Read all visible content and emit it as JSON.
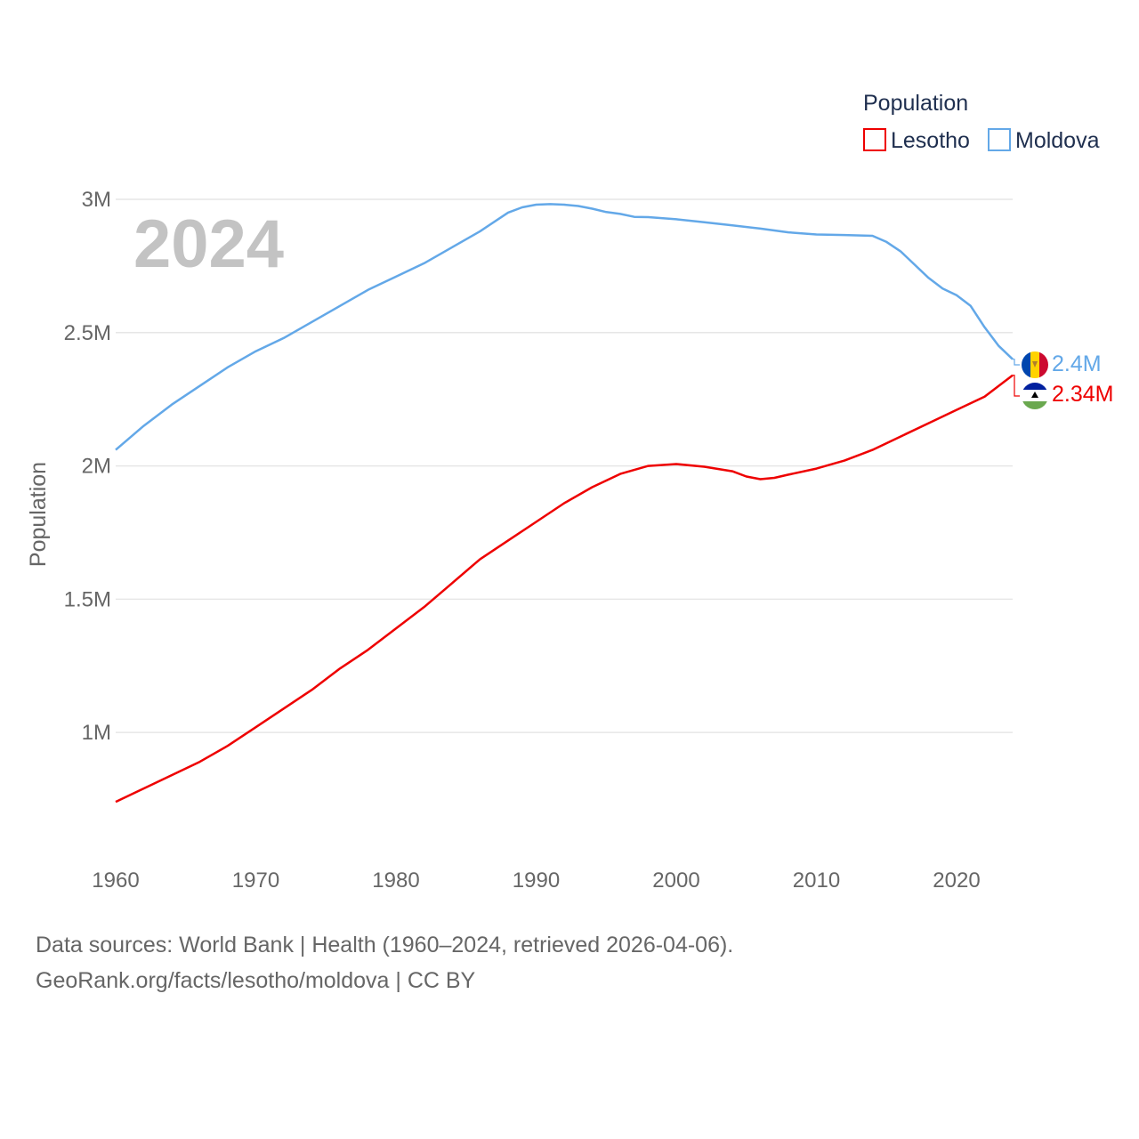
{
  "legend": {
    "title": "Population",
    "items": [
      {
        "label": "Lesotho",
        "color": "#ee0000"
      },
      {
        "label": "Moldova",
        "color": "#63a8e8"
      }
    ]
  },
  "year_label": "2024",
  "source": {
    "line1": "Data sources: World Bank | Health (1960–2024, retrieved 2026-04-06).",
    "line2": "GeoRank.org/facts/lesotho/moldova | CC BY"
  },
  "chart_data": {
    "type": "line",
    "title": "Population",
    "xlabel": "",
    "ylabel": "Population",
    "xlim": [
      1960,
      2024
    ],
    "ylim": [
      0.61,
      3.08
    ],
    "y_unit": "millions",
    "grid": true,
    "legend_position": "top-right",
    "x_ticks": [
      {
        "value": 1960,
        "label": "1960"
      },
      {
        "value": 1970,
        "label": "1970"
      },
      {
        "value": 1980,
        "label": "1980"
      },
      {
        "value": 1990,
        "label": "1990"
      },
      {
        "value": 2000,
        "label": "2000"
      },
      {
        "value": 2010,
        "label": "2010"
      },
      {
        "value": 2020,
        "label": "2020"
      }
    ],
    "y_ticks": [
      {
        "value": 1.0,
        "label": "1M"
      },
      {
        "value": 1.5,
        "label": "1.5M"
      },
      {
        "value": 2.0,
        "label": "2M"
      },
      {
        "value": 2.5,
        "label": "2.5M"
      },
      {
        "value": 3.0,
        "label": "3M"
      }
    ],
    "series": [
      {
        "name": "Moldova",
        "color": "#63a8e8",
        "end_label": "2.4M",
        "end_icon": "moldova-flag-icon",
        "x": [
          1960,
          1962,
          1964,
          1966,
          1968,
          1970,
          1972,
          1974,
          1976,
          1978,
          1980,
          1982,
          1984,
          1986,
          1988,
          1989,
          1990,
          1991,
          1992,
          1993,
          1994,
          1995,
          1996,
          1997,
          1998,
          2000,
          2002,
          2004,
          2006,
          2008,
          2010,
          2012,
          2014,
          2015,
          2016,
          2017,
          2018,
          2019,
          2020,
          2021,
          2022,
          2023,
          2024
        ],
        "values": [
          2.06,
          2.15,
          2.23,
          2.3,
          2.37,
          2.43,
          2.48,
          2.54,
          2.6,
          2.66,
          2.71,
          2.76,
          2.82,
          2.88,
          2.95,
          2.97,
          2.98,
          2.982,
          2.98,
          2.975,
          2.965,
          2.952,
          2.945,
          2.934,
          2.933,
          2.925,
          2.914,
          2.902,
          2.89,
          2.876,
          2.868,
          2.866,
          2.863,
          2.84,
          2.805,
          2.755,
          2.705,
          2.665,
          2.64,
          2.6,
          2.52,
          2.45,
          2.4
        ]
      },
      {
        "name": "Lesotho",
        "color": "#ee0000",
        "end_label": "2.34M",
        "end_icon": "lesotho-flag-icon",
        "x": [
          1960,
          1962,
          1964,
          1966,
          1968,
          1970,
          1972,
          1974,
          1976,
          1978,
          1980,
          1982,
          1984,
          1986,
          1988,
          1990,
          1992,
          1994,
          1996,
          1998,
          2000,
          2002,
          2004,
          2005,
          2006,
          2007,
          2008,
          2010,
          2012,
          2014,
          2016,
          2018,
          2020,
          2022,
          2024
        ],
        "values": [
          0.74,
          0.79,
          0.84,
          0.89,
          0.95,
          1.02,
          1.09,
          1.16,
          1.24,
          1.31,
          1.39,
          1.47,
          1.56,
          1.65,
          1.72,
          1.79,
          1.86,
          1.92,
          1.97,
          2.0,
          2.007,
          1.997,
          1.98,
          1.96,
          1.95,
          1.955,
          1.967,
          1.99,
          2.02,
          2.06,
          2.11,
          2.16,
          2.21,
          2.26,
          2.34
        ]
      }
    ]
  }
}
